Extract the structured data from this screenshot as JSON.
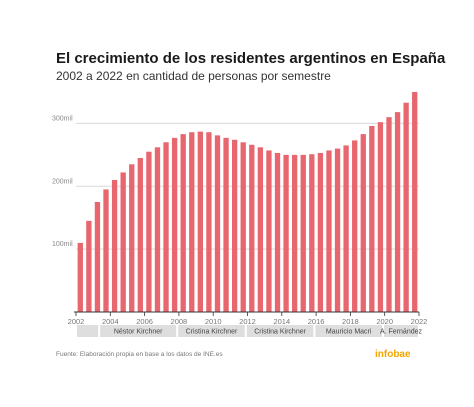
{
  "title": "El crecimiento de los residentes argentinos en España",
  "subtitle": "2002 a 2022 en cantidad de personas por semestre",
  "source": "Fuente: Elaboración propia en base a los datos de INE.es",
  "logo": "infobae",
  "colors": {
    "bar": "#e8676f",
    "grid": "#d9d9d9",
    "axis": "#333333",
    "period_bg": "#dedede"
  },
  "chart_data": {
    "type": "bar",
    "title": "El crecimiento de los residentes argentinos en España",
    "subtitle": "2002 a 2022 en cantidad de personas por semestre",
    "xlabel": "",
    "ylabel": "",
    "x_ticks": [
      "2002",
      "2004",
      "2006",
      "2008",
      "2010",
      "2012",
      "2014",
      "2016",
      "2018",
      "2020",
      "2022"
    ],
    "x_range": [
      2002,
      2022
    ],
    "y_ticks": [
      {
        "value": 100000,
        "label": "100mil"
      },
      {
        "value": 200000,
        "label": "200mil"
      },
      {
        "value": 300000,
        "label": "300mil"
      }
    ],
    "ylim": [
      0,
      350000
    ],
    "grid": true,
    "x": [
      2002.0,
      2002.5,
      2003.0,
      2003.5,
      2004.0,
      2004.5,
      2005.0,
      2005.5,
      2006.0,
      2006.5,
      2007.0,
      2007.5,
      2008.0,
      2008.5,
      2009.0,
      2009.5,
      2010.0,
      2010.5,
      2011.0,
      2011.5,
      2012.0,
      2012.5,
      2013.0,
      2013.5,
      2014.0,
      2014.5,
      2015.0,
      2015.5,
      2016.0,
      2016.5,
      2017.0,
      2017.5,
      2018.0,
      2018.5,
      2019.0,
      2019.5,
      2020.0,
      2020.5,
      2021.0,
      2021.5
    ],
    "values": [
      110000,
      145000,
      175000,
      195000,
      210000,
      222000,
      235000,
      245000,
      255000,
      262000,
      270000,
      277000,
      283000,
      286000,
      287000,
      286000,
      281000,
      277000,
      274000,
      270000,
      266000,
      262000,
      257000,
      253000,
      250000,
      250000,
      250000,
      251000,
      253000,
      257000,
      260000,
      265000,
      273000,
      283000,
      296000,
      302000,
      310000,
      318000,
      333000,
      350000
    ],
    "periods": [
      {
        "label": "",
        "from": 2002.0,
        "to": 2003.35
      },
      {
        "label": "Néstor Kirchner",
        "from": 2003.35,
        "to": 2007.9
      },
      {
        "label": "Cristina Kirchner",
        "from": 2007.9,
        "to": 2011.9
      },
      {
        "label": "Cristina Kirchner",
        "from": 2011.9,
        "to": 2015.9
      },
      {
        "label": "Mauricio Macri",
        "from": 2015.9,
        "to": 2019.9
      },
      {
        "label": "A. Fernández",
        "from": 2019.9,
        "to": 2022.0
      }
    ]
  }
}
